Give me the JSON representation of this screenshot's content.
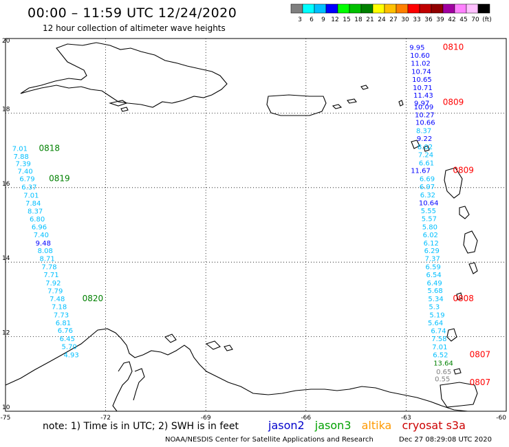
{
  "header": {
    "title": "00:00 – 11:59 UTC 12/24/2020",
    "subtitle": "12 hour collection of altimeter wave heights"
  },
  "legend": {
    "bins": [
      {
        "label": "3",
        "color": "#7f7f7f"
      },
      {
        "label": "6",
        "color": "#00ffff"
      },
      {
        "label": "9",
        "color": "#00bfff"
      },
      {
        "label": "12",
        "color": "#0000ff"
      },
      {
        "label": "15",
        "color": "#00ff00"
      },
      {
        "label": "18",
        "color": "#00c000"
      },
      {
        "label": "21",
        "color": "#008000"
      },
      {
        "label": "24",
        "color": "#ffff00"
      },
      {
        "label": "27",
        "color": "#ffc000"
      },
      {
        "label": "30",
        "color": "#ff8000"
      },
      {
        "label": "33",
        "color": "#ff0000"
      },
      {
        "label": "36",
        "color": "#c00000"
      },
      {
        "label": "39",
        "color": "#900000"
      },
      {
        "label": "42",
        "color": "#a000a0"
      },
      {
        "label": "45",
        "color": "#ff80ff"
      },
      {
        "label": "70",
        "color": "#ffc0ff"
      },
      {
        "label": "(ft)",
        "color": "#000000"
      }
    ]
  },
  "axes": {
    "lon_labels": [
      "-75",
      "-72",
      "-69",
      "-66",
      "-63",
      "-60"
    ],
    "lat_labels": [
      "20",
      "18",
      "16",
      "14",
      "12",
      "10"
    ],
    "lon_range": [
      -75,
      -60
    ],
    "lat_range": [
      10,
      20
    ]
  },
  "tracks": {
    "west": {
      "points": [
        {
          "lon": -74.8,
          "lat": 16.98,
          "v": "7.01",
          "c": "#00bfff"
        },
        {
          "lon": -74.76,
          "lat": 16.77,
          "v": "7.88",
          "c": "#00bfff"
        },
        {
          "lon": -74.7,
          "lat": 16.58,
          "v": "7.39",
          "c": "#00bfff"
        },
        {
          "lon": -74.64,
          "lat": 16.37,
          "v": "7.40",
          "c": "#00bfff"
        },
        {
          "lon": -74.58,
          "lat": 16.17,
          "v": "6.79",
          "c": "#00bfff"
        },
        {
          "lon": -74.52,
          "lat": 15.95,
          "v": "6.37",
          "c": "#00bfff"
        },
        {
          "lon": -74.46,
          "lat": 15.73,
          "v": "7.01",
          "c": "#00bfff"
        },
        {
          "lon": -74.4,
          "lat": 15.52,
          "v": "7.84",
          "c": "#00bfff"
        },
        {
          "lon": -74.34,
          "lat": 15.3,
          "v": "8.37",
          "c": "#00bfff"
        },
        {
          "lon": -74.28,
          "lat": 15.09,
          "v": "6.80",
          "c": "#00bfff"
        },
        {
          "lon": -74.22,
          "lat": 14.88,
          "v": "6.96",
          "c": "#00bfff"
        },
        {
          "lon": -74.16,
          "lat": 14.67,
          "v": "7.40",
          "c": "#00bfff"
        },
        {
          "lon": -74.1,
          "lat": 14.45,
          "v": "9.48",
          "c": "#0000ff"
        },
        {
          "lon": -74.04,
          "lat": 14.24,
          "v": "8.08",
          "c": "#00bfff"
        },
        {
          "lon": -73.98,
          "lat": 14.03,
          "v": "8.71",
          "c": "#00bfff"
        },
        {
          "lon": -73.92,
          "lat": 13.81,
          "v": "7.78",
          "c": "#00bfff"
        },
        {
          "lon": -73.86,
          "lat": 13.6,
          "v": "7.71",
          "c": "#00bfff"
        },
        {
          "lon": -73.8,
          "lat": 13.38,
          "v": "7.92",
          "c": "#00bfff"
        },
        {
          "lon": -73.74,
          "lat": 13.16,
          "v": "7.79",
          "c": "#00bfff"
        },
        {
          "lon": -73.68,
          "lat": 12.95,
          "v": "7.48",
          "c": "#00bfff"
        },
        {
          "lon": -73.62,
          "lat": 12.74,
          "v": "7.18",
          "c": "#00bfff"
        },
        {
          "lon": -73.56,
          "lat": 12.52,
          "v": "7.73",
          "c": "#00bfff"
        },
        {
          "lon": -73.5,
          "lat": 12.31,
          "v": "6.81",
          "c": "#00bfff"
        },
        {
          "lon": -73.44,
          "lat": 12.1,
          "v": "6.76",
          "c": "#00bfff"
        },
        {
          "lon": -73.38,
          "lat": 11.88,
          "v": "6.45",
          "c": "#00bfff"
        },
        {
          "lon": -73.32,
          "lat": 11.67,
          "v": "5.70",
          "c": "#00bfff"
        },
        {
          "lon": -73.26,
          "lat": 11.45,
          "v": "4.93",
          "c": "#00bfff"
        }
      ],
      "times": [
        {
          "lon": -74.0,
          "lat": 16.98,
          "t": "0818",
          "c": "#008000"
        },
        {
          "lon": -73.7,
          "lat": 16.17,
          "t": "0819",
          "c": "#008000"
        },
        {
          "lon": -72.7,
          "lat": 12.95,
          "t": "0820",
          "c": "#008000"
        }
      ]
    },
    "east": {
      "points": [
        {
          "lon": -62.9,
          "lat": 19.7,
          "v": "9.95",
          "c": "#0000ff"
        },
        {
          "lon": -62.88,
          "lat": 19.48,
          "v": "10.60",
          "c": "#0000ff"
        },
        {
          "lon": -62.86,
          "lat": 19.27,
          "v": "11.02",
          "c": "#0000ff"
        },
        {
          "lon": -62.84,
          "lat": 19.05,
          "v": "10.74",
          "c": "#0000ff"
        },
        {
          "lon": -62.82,
          "lat": 18.84,
          "v": "10.65",
          "c": "#0000ff"
        },
        {
          "lon": -62.8,
          "lat": 18.62,
          "v": "10.71",
          "c": "#0000ff"
        },
        {
          "lon": -62.78,
          "lat": 18.41,
          "v": "11.43",
          "c": "#0000ff"
        },
        {
          "lon": -62.76,
          "lat": 18.2,
          "v": "9.97",
          "c": "#0000ff"
        },
        {
          "lon": -62.77,
          "lat": 18.1,
          "v": "10.09",
          "c": "#0000ff"
        },
        {
          "lon": -62.74,
          "lat": 17.89,
          "v": "10.27",
          "c": "#0000ff"
        },
        {
          "lon": -62.72,
          "lat": 17.68,
          "v": "10.66",
          "c": "#0000ff"
        },
        {
          "lon": -62.7,
          "lat": 17.46,
          "v": "8.37",
          "c": "#00bfff"
        },
        {
          "lon": -62.68,
          "lat": 17.25,
          "v": "9.22",
          "c": "#0000ff"
        },
        {
          "lon": -62.66,
          "lat": 17.03,
          "v": "8.02",
          "c": "#00bfff"
        },
        {
          "lon": -62.64,
          "lat": 16.82,
          "v": "7.24",
          "c": "#00bfff"
        },
        {
          "lon": -62.62,
          "lat": 16.6,
          "v": "6.61",
          "c": "#00bfff"
        },
        {
          "lon": -62.86,
          "lat": 16.39,
          "v": "11.67",
          "c": "#0000ff"
        },
        {
          "lon": -62.6,
          "lat": 16.17,
          "v": "6.69",
          "c": "#00bfff"
        },
        {
          "lon": -62.6,
          "lat": 15.96,
          "v": "6.97",
          "c": "#00bfff"
        },
        {
          "lon": -62.58,
          "lat": 15.74,
          "v": "6.32",
          "c": "#00bfff"
        },
        {
          "lon": -62.62,
          "lat": 15.53,
          "v": "10.64",
          "c": "#0000ff"
        },
        {
          "lon": -62.56,
          "lat": 15.31,
          "v": "5.55",
          "c": "#00bfff"
        },
        {
          "lon": -62.54,
          "lat": 15.1,
          "v": "5.57",
          "c": "#00bfff"
        },
        {
          "lon": -62.52,
          "lat": 14.88,
          "v": "5.80",
          "c": "#00bfff"
        },
        {
          "lon": -62.5,
          "lat": 14.67,
          "v": "6.02",
          "c": "#00bfff"
        },
        {
          "lon": -62.48,
          "lat": 14.45,
          "v": "6.12",
          "c": "#00bfff"
        },
        {
          "lon": -62.46,
          "lat": 14.24,
          "v": "6.29",
          "c": "#00bfff"
        },
        {
          "lon": -62.44,
          "lat": 14.03,
          "v": "7.37",
          "c": "#00bfff"
        },
        {
          "lon": -62.42,
          "lat": 13.81,
          "v": "6.59",
          "c": "#00bfff"
        },
        {
          "lon": -62.4,
          "lat": 13.6,
          "v": "6.54",
          "c": "#00bfff"
        },
        {
          "lon": -62.38,
          "lat": 13.38,
          "v": "6.49",
          "c": "#00bfff"
        },
        {
          "lon": -62.36,
          "lat": 13.17,
          "v": "5.68",
          "c": "#00bfff"
        },
        {
          "lon": -62.34,
          "lat": 12.95,
          "v": "5.34",
          "c": "#00bfff"
        },
        {
          "lon": -62.32,
          "lat": 12.74,
          "v": "5.3",
          "c": "#00bfff"
        },
        {
          "lon": -62.3,
          "lat": 12.52,
          "v": "5.19",
          "c": "#00bfff"
        },
        {
          "lon": -62.35,
          "lat": 12.31,
          "v": "5.64",
          "c": "#00bfff"
        },
        {
          "lon": -62.26,
          "lat": 12.09,
          "v": "6.74",
          "c": "#00bfff"
        },
        {
          "lon": -62.24,
          "lat": 11.88,
          "v": "7.58",
          "c": "#00bfff"
        },
        {
          "lon": -62.22,
          "lat": 11.66,
          "v": "7.01",
          "c": "#00bfff"
        },
        {
          "lon": -62.2,
          "lat": 11.45,
          "v": "6.52",
          "c": "#00bfff"
        },
        {
          "lon": -62.18,
          "lat": 11.23,
          "v": "13.64",
          "c": "#008000"
        },
        {
          "lon": -62.1,
          "lat": 11.0,
          "v": "0.65",
          "c": "#7f7f7f"
        },
        {
          "lon": -62.14,
          "lat": 10.8,
          "v": "0.55",
          "c": "#7f7f7f"
        }
      ],
      "times": [
        {
          "lon": -61.9,
          "lat": 19.7,
          "t": "0810",
          "c": "#ff0000"
        },
        {
          "lon": -61.9,
          "lat": 18.22,
          "t": "0809",
          "c": "#ff0000"
        },
        {
          "lon": -61.6,
          "lat": 16.39,
          "t": "0809",
          "c": "#ff0000"
        },
        {
          "lon": -61.6,
          "lat": 12.95,
          "t": "0808",
          "c": "#ff0000"
        },
        {
          "lon": -61.1,
          "lat": 11.45,
          "t": "0807",
          "c": "#ff0000"
        },
        {
          "lon": -61.1,
          "lat": 10.7,
          "t": "0807",
          "c": "#ff0000"
        }
      ]
    }
  },
  "footer": {
    "note": "note: 1) Time is in UTC; 2) SWH is in feet",
    "satellites": [
      {
        "name": "jason2",
        "color": "#0000cc"
      },
      {
        "name": "jason3",
        "color": "#00a000"
      },
      {
        "name": "altika",
        "color": "#ff9900"
      },
      {
        "name": "cryosat s3a",
        "color": "#cc0000"
      }
    ],
    "credit": "NOAA/NESDIS Center for Satellite Applications and Research",
    "timestamp": "Dec 27 08:29:08 UTC 2020"
  }
}
